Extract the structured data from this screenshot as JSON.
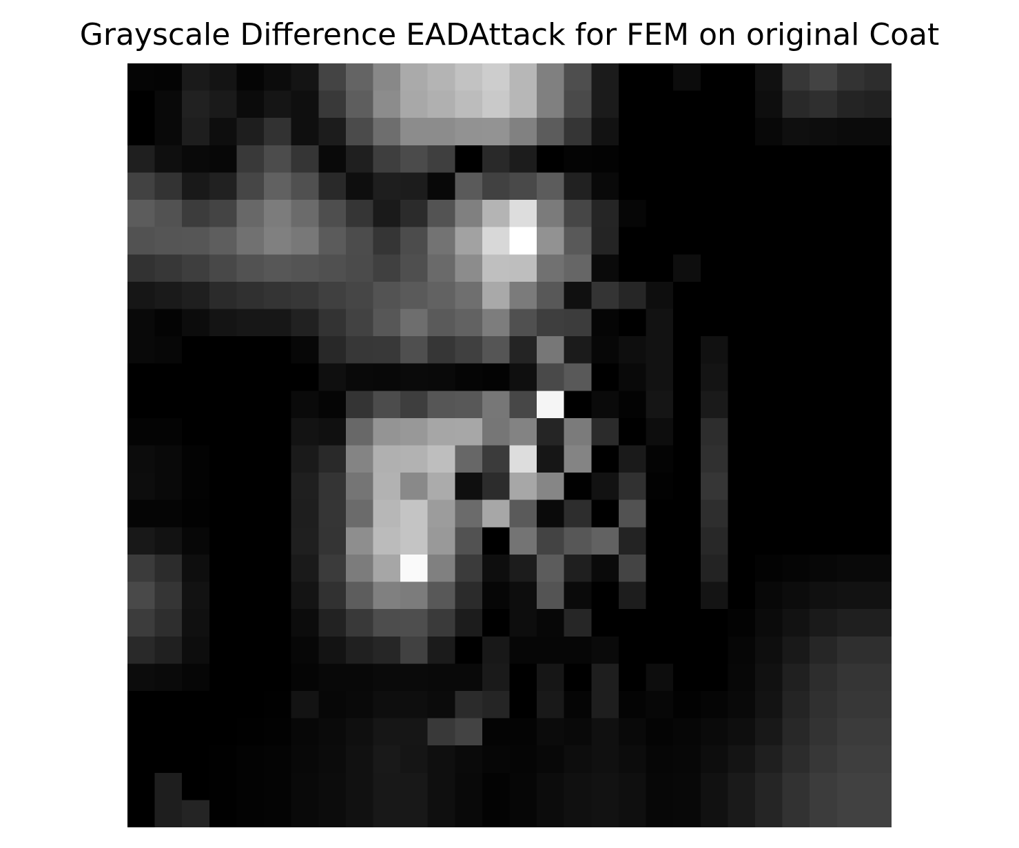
{
  "chart_data": {
    "type": "heatmap",
    "title": "Grayscale Difference EADAttack for FEM on original Coat",
    "colormap": "gray",
    "vmin": 0,
    "vmax": 255,
    "axes_visible": false,
    "rows": 28,
    "cols": 28,
    "values": [
      [
        5,
        4,
        26,
        20,
        5,
        12,
        20,
        68,
        100,
        136,
        170,
        180,
        194,
        205,
        183,
        128,
        78,
        27,
        0,
        0,
        12,
        0,
        0,
        17,
        55,
        67,
        51,
        45
      ],
      [
        0,
        9,
        33,
        26,
        11,
        21,
        15,
        57,
        94,
        140,
        168,
        176,
        188,
        201,
        183,
        128,
        74,
        27,
        0,
        0,
        0,
        0,
        0,
        14,
        41,
        47,
        36,
        33
      ],
      [
        0,
        9,
        30,
        14,
        30,
        50,
        15,
        28,
        75,
        110,
        140,
        140,
        146,
        147,
        129,
        92,
        53,
        18,
        0,
        0,
        0,
        0,
        0,
        8,
        15,
        13,
        11,
        11
      ],
      [
        31,
        15,
        9,
        7,
        57,
        76,
        53,
        9,
        31,
        62,
        75,
        63,
        0,
        41,
        28,
        0,
        4,
        3,
        0,
        0,
        0,
        0,
        0,
        0,
        0,
        0,
        0,
        0
      ],
      [
        66,
        51,
        25,
        33,
        70,
        97,
        80,
        41,
        14,
        30,
        28,
        8,
        90,
        65,
        73,
        92,
        33,
        9,
        0,
        0,
        0,
        0,
        0,
        0,
        0,
        0,
        0,
        0
      ],
      [
        92,
        82,
        60,
        68,
        104,
        124,
        107,
        78,
        53,
        26,
        43,
        83,
        128,
        180,
        221,
        123,
        70,
        37,
        6,
        0,
        0,
        0,
        0,
        0,
        0,
        0,
        0,
        0
      ],
      [
        82,
        85,
        86,
        94,
        113,
        128,
        120,
        91,
        76,
        53,
        76,
        115,
        162,
        216,
        255,
        146,
        89,
        36,
        0,
        0,
        0,
        0,
        0,
        0,
        0,
        0,
        0,
        0
      ],
      [
        50,
        55,
        62,
        72,
        82,
        87,
        84,
        80,
        75,
        64,
        79,
        106,
        140,
        191,
        190,
        113,
        102,
        10,
        0,
        0,
        14,
        0,
        0,
        0,
        0,
        0,
        0,
        0
      ],
      [
        22,
        26,
        31,
        43,
        48,
        52,
        55,
        64,
        70,
        83,
        90,
        98,
        111,
        169,
        123,
        88,
        16,
        52,
        38,
        14,
        0,
        0,
        0,
        0,
        0,
        0,
        0,
        0
      ],
      [
        9,
        4,
        12,
        20,
        23,
        23,
        33,
        51,
        66,
        87,
        110,
        90,
        98,
        125,
        80,
        62,
        60,
        5,
        0,
        18,
        0,
        0,
        0,
        0,
        0,
        0,
        0,
        0
      ],
      [
        9,
        7,
        0,
        0,
        0,
        0,
        7,
        40,
        55,
        56,
        79,
        54,
        64,
        85,
        36,
        119,
        27,
        7,
        14,
        18,
        0,
        17,
        0,
        0,
        0,
        0,
        0,
        0
      ],
      [
        0,
        0,
        0,
        0,
        0,
        0,
        0,
        15,
        9,
        8,
        10,
        9,
        5,
        3,
        15,
        73,
        89,
        0,
        9,
        18,
        0,
        20,
        0,
        0,
        0,
        0,
        0,
        0
      ],
      [
        0,
        0,
        0,
        0,
        0,
        0,
        10,
        5,
        52,
        76,
        62,
        86,
        88,
        119,
        71,
        245,
        0,
        10,
        3,
        21,
        0,
        26,
        0,
        0,
        0,
        0,
        0,
        0
      ],
      [
        4,
        4,
        0,
        0,
        0,
        0,
        19,
        16,
        104,
        148,
        152,
        166,
        167,
        118,
        131,
        37,
        123,
        43,
        0,
        13,
        0,
        45,
        0,
        0,
        0,
        0,
        0,
        0
      ],
      [
        12,
        9,
        3,
        0,
        0,
        0,
        26,
        41,
        132,
        176,
        178,
        190,
        103,
        59,
        221,
        22,
        132,
        0,
        26,
        4,
        0,
        48,
        0,
        0,
        0,
        0,
        0,
        0
      ],
      [
        13,
        9,
        3,
        0,
        0,
        0,
        31,
        52,
        117,
        178,
        137,
        171,
        15,
        44,
        167,
        134,
        1,
        18,
        49,
        2,
        0,
        54,
        0,
        0,
        0,
        0,
        0,
        0
      ],
      [
        5,
        5,
        2,
        0,
        0,
        0,
        30,
        53,
        107,
        183,
        196,
        156,
        107,
        167,
        90,
        10,
        45,
        0,
        82,
        0,
        0,
        46,
        0,
        0,
        0,
        0,
        0,
        0
      ],
      [
        24,
        18,
        7,
        0,
        0,
        0,
        31,
        52,
        142,
        187,
        196,
        153,
        82,
        0,
        116,
        67,
        87,
        98,
        35,
        0,
        0,
        40,
        0,
        0,
        0,
        0,
        0,
        0
      ],
      [
        59,
        44,
        14,
        0,
        0,
        0,
        26,
        59,
        124,
        166,
        250,
        128,
        59,
        14,
        28,
        92,
        31,
        10,
        68,
        0,
        0,
        35,
        0,
        3,
        5,
        7,
        9,
        9
      ],
      [
        73,
        53,
        18,
        0,
        0,
        0,
        20,
        49,
        93,
        128,
        124,
        88,
        43,
        6,
        13,
        84,
        10,
        0,
        29,
        0,
        0,
        20,
        0,
        8,
        12,
        16,
        18,
        18
      ],
      [
        60,
        46,
        16,
        0,
        0,
        0,
        12,
        34,
        57,
        77,
        78,
        58,
        28,
        0,
        13,
        7,
        38,
        0,
        0,
        0,
        0,
        0,
        3,
        11,
        18,
        26,
        31,
        31
      ],
      [
        41,
        32,
        13,
        0,
        0,
        0,
        7,
        19,
        32,
        38,
        65,
        27,
        0,
        24,
        6,
        6,
        6,
        10,
        0,
        0,
        0,
        0,
        6,
        14,
        25,
        38,
        47,
        47
      ],
      [
        12,
        10,
        6,
        0,
        0,
        0,
        5,
        8,
        8,
        10,
        10,
        9,
        9,
        26,
        0,
        22,
        0,
        30,
        0,
        13,
        0,
        0,
        7,
        17,
        32,
        45,
        53,
        53
      ],
      [
        0,
        0,
        0,
        0,
        0,
        1,
        19,
        7,
        9,
        14,
        14,
        11,
        43,
        37,
        0,
        25,
        5,
        30,
        4,
        7,
        2,
        5,
        9,
        19,
        36,
        48,
        55,
        55
      ],
      [
        0,
        0,
        0,
        0,
        1,
        2,
        7,
        10,
        15,
        22,
        22,
        57,
        67,
        4,
        4,
        11,
        9,
        16,
        9,
        4,
        6,
        10,
        14,
        24,
        40,
        51,
        59,
        59
      ],
      [
        0,
        0,
        0,
        1,
        3,
        4,
        8,
        11,
        17,
        25,
        21,
        15,
        10,
        6,
        5,
        8,
        13,
        16,
        12,
        6,
        7,
        13,
        20,
        31,
        44,
        55,
        62,
        62
      ],
      [
        0,
        30,
        0,
        1,
        3,
        4,
        9,
        12,
        17,
        24,
        24,
        15,
        9,
        3,
        6,
        12,
        16,
        18,
        15,
        7,
        8,
        17,
        26,
        37,
        50,
        60,
        65,
        65
      ],
      [
        0,
        30,
        36,
        1,
        3,
        4,
        9,
        12,
        17,
        24,
        24,
        15,
        9,
        3,
        6,
        12,
        16,
        18,
        15,
        7,
        8,
        17,
        26,
        37,
        50,
        60,
        65,
        65
      ]
    ]
  }
}
